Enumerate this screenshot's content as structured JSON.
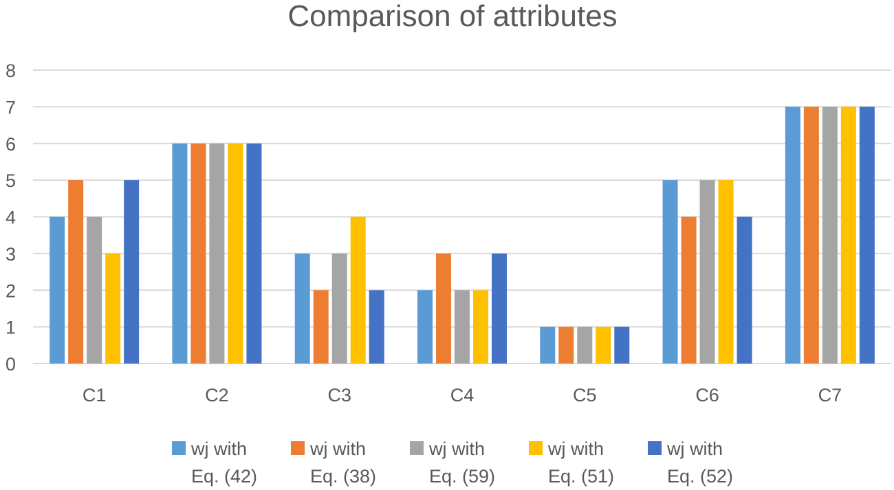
{
  "chart_data": {
    "type": "bar",
    "title": "Comparison of attributes",
    "xlabel": "",
    "ylabel": "",
    "ylim": [
      0,
      8
    ],
    "yticks": [
      0,
      1,
      2,
      3,
      4,
      5,
      6,
      7,
      8
    ],
    "grid": true,
    "legend_position": "bottom",
    "categories": [
      "C1",
      "C2",
      "C3",
      "C4",
      "C5",
      "C6",
      "C7"
    ],
    "series": [
      {
        "name": "wj with Eq. (42)",
        "legend_lines": [
          "wj with",
          "Eq. (42)"
        ],
        "color": "#5B9BD5",
        "values": [
          4,
          6,
          3,
          2,
          1,
          5,
          7
        ]
      },
      {
        "name": "wj with Eq. (38)",
        "legend_lines": [
          "wj with",
          "Eq. (38)"
        ],
        "color": "#ED7D31",
        "values": [
          5,
          6,
          2,
          3,
          1,
          4,
          7
        ]
      },
      {
        "name": "wj with Eq. (59)",
        "legend_lines": [
          "wj with",
          "Eq. (59)"
        ],
        "color": "#A5A5A5",
        "values": [
          4,
          6,
          3,
          2,
          1,
          5,
          7
        ]
      },
      {
        "name": "wj with Eq. (51)",
        "legend_lines": [
          "wj with",
          "Eq. (51)"
        ],
        "color": "#FFC000",
        "values": [
          3,
          6,
          4,
          2,
          1,
          5,
          7
        ]
      },
      {
        "name": "wj with Eq. (52)",
        "legend_lines": [
          "wj with",
          "Eq. (52)"
        ],
        "color": "#4472C4",
        "values": [
          5,
          6,
          2,
          3,
          1,
          4,
          7
        ]
      }
    ]
  }
}
